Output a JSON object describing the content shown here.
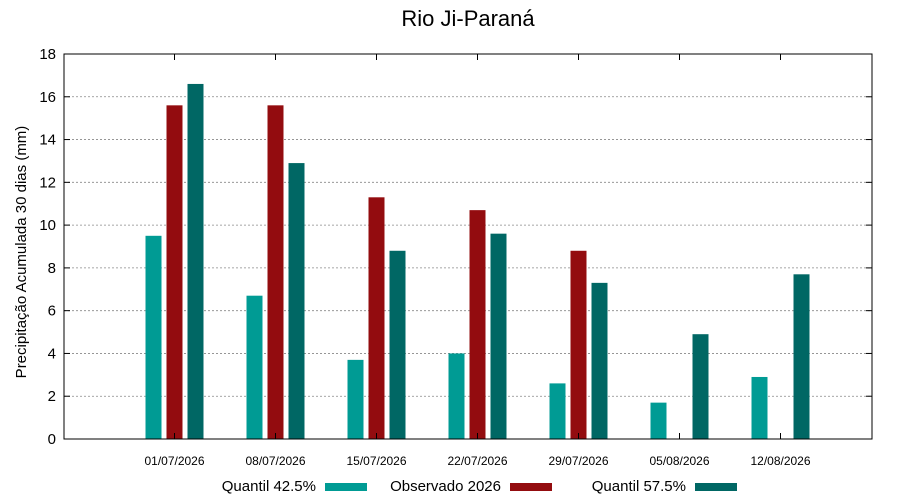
{
  "chart_data": {
    "type": "bar",
    "title": "Rio Ji-Paraná",
    "xlabel": "",
    "ylabel": "Precipitação Acumulada 30 dias (mm)",
    "ylim": [
      0,
      18
    ],
    "yticks": [
      0,
      2,
      4,
      6,
      8,
      10,
      12,
      14,
      16,
      18
    ],
    "grid": true,
    "legend_position": "bottom",
    "categories": [
      "01/07/2026",
      "08/07/2026",
      "15/07/2026",
      "22/07/2026",
      "29/07/2026",
      "05/08/2026",
      "12/08/2026"
    ],
    "series": [
      {
        "name": "Quantil 42.5%",
        "color": "#009b94",
        "values": [
          9.5,
          6.7,
          3.7,
          4.0,
          2.6,
          1.7,
          2.9
        ]
      },
      {
        "name": "Observado 2026",
        "color": "#930c0f",
        "values": [
          15.6,
          15.6,
          11.3,
          10.7,
          8.8,
          null,
          null
        ]
      },
      {
        "name": "Quantil 57.5%",
        "color": "#006764",
        "values": [
          16.6,
          12.9,
          8.8,
          9.6,
          7.3,
          4.9,
          7.7
        ]
      }
    ]
  }
}
